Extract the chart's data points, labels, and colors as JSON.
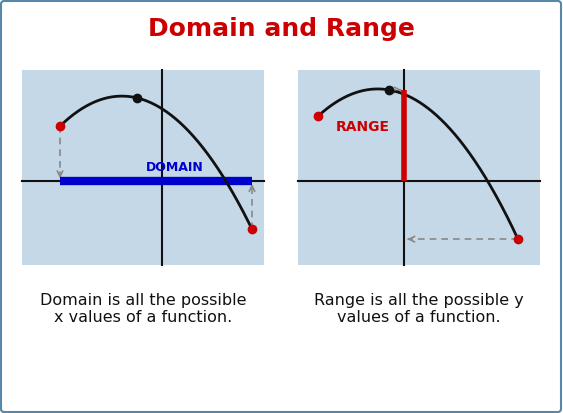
{
  "title": "Domain and Range",
  "title_color": "#cc0000",
  "title_fontsize": 18,
  "bg_color": "#ffffff",
  "panel_bg_color": "#c5d8e8",
  "border_color": "#5588aa",
  "left_caption": "Domain is all the possible\nx values of a function.",
  "right_caption": "Range is all the possible y\nvalues of a function.",
  "caption_fontsize": 11.5,
  "domain_label": "DOMAIN",
  "range_label": "RANGE",
  "domain_color": "#0000cc",
  "range_color": "#cc0000",
  "label_fontsize": 9,
  "curve_color": "#111111",
  "axis_color": "#111111",
  "dot_color_red": "#cc0000",
  "dot_color_black": "#111111",
  "arrow_color": "#888888",
  "fig_w": 5.63,
  "fig_h": 4.14,
  "fig_dpi": 100
}
